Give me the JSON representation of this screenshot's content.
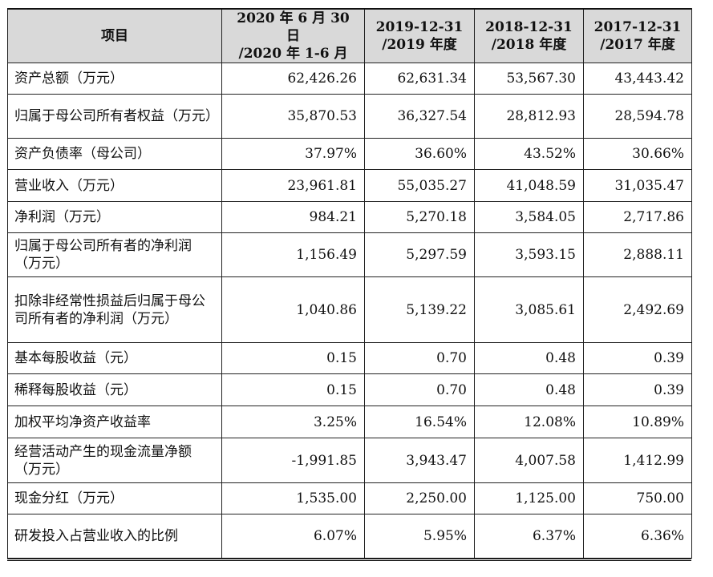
{
  "headers": {
    "item": "项目",
    "col1_line1": "2020 年 6 月 30 日",
    "col1_line2": "/2020 年 1-6 月",
    "col2_line1": "2019-12-31",
    "col2_line2": "/2019 年度",
    "col3_line1": "2018-12-31",
    "col3_line2": "/2018 年度",
    "col4_line1": "2017-12-31",
    "col4_line2": "/2017 年度"
  },
  "rows": [
    {
      "label": "资产总额（万元）",
      "values": [
        "62,426.26",
        "62,631.34",
        "53,567.30",
        "43,443.42"
      ]
    },
    {
      "label": "归属于母公司所有者权益（万元）",
      "values": [
        "35,870.53",
        "36,327.54",
        "28,812.93",
        "28,594.78"
      ]
    },
    {
      "label": "资产负债率（母公司）",
      "values": [
        "37.97%",
        "36.60%",
        "43.52%",
        "30.66%"
      ]
    },
    {
      "label": "营业收入（万元）",
      "values": [
        "23,961.81",
        "55,035.27",
        "41,048.59",
        "31,035.47"
      ]
    },
    {
      "label": "净利润（万元）",
      "values": [
        "984.21",
        "5,270.18",
        "3,584.05",
        "2,717.86"
      ]
    },
    {
      "label": "归属于母公司所有者的净利润（万元）",
      "values": [
        "1,156.49",
        "5,297.59",
        "3,593.15",
        "2,888.11"
      ]
    },
    {
      "label": "扣除非经常性损益后归属于母公司所有者的净利润（万元）",
      "values": [
        "1,040.86",
        "5,139.22",
        "3,085.61",
        "2,492.69"
      ]
    },
    {
      "label": "基本每股收益（元）",
      "values": [
        "0.15",
        "0.70",
        "0.48",
        "0.39"
      ]
    },
    {
      "label": "稀释每股收益（元）",
      "values": [
        "0.15",
        "0.70",
        "0.48",
        "0.39"
      ]
    },
    {
      "label": "加权平均净资产收益率",
      "values": [
        "3.25%",
        "16.54%",
        "12.08%",
        "10.89%"
      ]
    },
    {
      "label": "经营活动产生的现金流量净额（万元）",
      "values": [
        "-1,991.85",
        "3,943.47",
        "4,007.58",
        "1,412.99"
      ]
    },
    {
      "label": "现金分红（万元）",
      "values": [
        "1,535.00",
        "2,250.00",
        "1,125.00",
        "750.00"
      ]
    },
    {
      "label": "研发投入占营业收入的比例",
      "values": [
        "6.07%",
        "5.95%",
        "6.37%",
        "6.36%"
      ]
    }
  ]
}
